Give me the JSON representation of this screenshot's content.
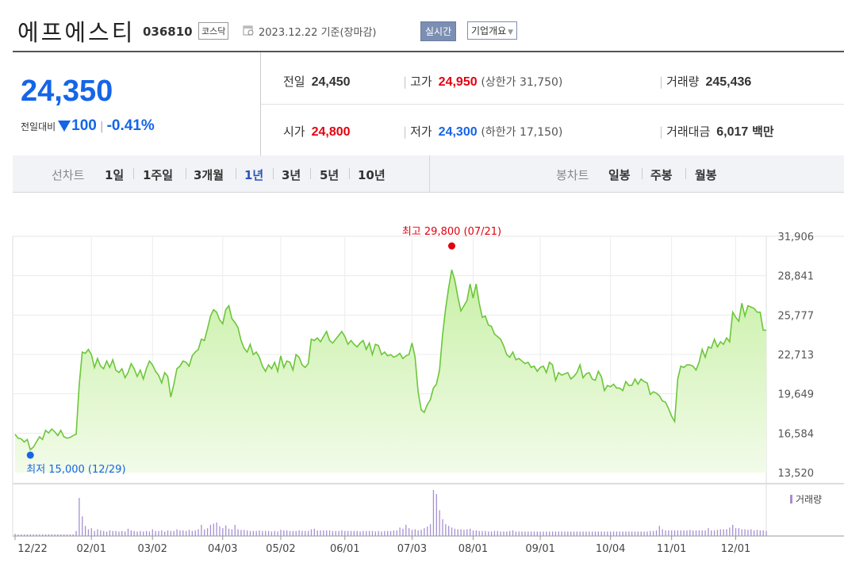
{
  "header": {
    "company_name": "에프에스티",
    "stock_code": "036810",
    "market": "코스닥",
    "base_date": "2023.12.22 기준(장마감)",
    "realtime_label": "실시간",
    "overview_label": "기업개요"
  },
  "price": {
    "current": "24,350",
    "change_label": "전일대비",
    "change_value": "100",
    "change_pct": "-0.41%"
  },
  "stats": {
    "prev_close_label": "전일",
    "prev_close": "24,450",
    "high_label": "고가",
    "high": "24,950",
    "upper_limit": "(상한가 31,750)",
    "volume_label": "거래량",
    "volume": "245,436",
    "open_label": "시가",
    "open": "24,800",
    "low_label": "저가",
    "low": "24,300",
    "lower_limit": "(하한가 17,150)",
    "amount_label": "거래대금",
    "amount": "6,017",
    "amount_unit": "백만"
  },
  "period_bar": {
    "line_chart_label": "선차트",
    "periods": [
      "1일",
      "1주일",
      "3개월",
      "1년",
      "3년",
      "5년",
      "10년"
    ],
    "active_period": "1년",
    "candle_chart_label": "봉차트",
    "candles": [
      "일봉",
      "주봉",
      "월봉"
    ]
  },
  "colors": {
    "line": "#6cc63a",
    "fill_top": "#c8f0a6",
    "fill_bottom": "#f2fbe9",
    "up": "#e3000f",
    "down": "#1565e8",
    "volume": "#a58fd2"
  },
  "chart_data": {
    "type": "area",
    "y_ticks": [
      "31,906",
      "28,841",
      "25,777",
      "22,713",
      "19,649",
      "16,584",
      "13,520"
    ],
    "ylim": [
      13520,
      31906
    ],
    "x_ticks": [
      "12/22",
      "02/01",
      "03/02",
      "04/03",
      "05/02",
      "06/01",
      "07/03",
      "08/01",
      "09/01",
      "10/04",
      "11/01",
      "12/01"
    ],
    "x_tick_index": [
      0,
      25,
      45,
      68,
      87,
      108,
      130,
      150,
      172,
      195,
      215,
      236
    ],
    "max_label": "최고 29,800 (07/21)",
    "max_index": 143,
    "max_value": 29800,
    "min_label": "최저 15,000 (12/29)",
    "min_index": 5,
    "min_value": 15000,
    "volume_legend": "거래량",
    "close": [
      16500,
      16200,
      16150,
      15900,
      16100,
      15300,
      15500,
      15900,
      16300,
      16100,
      16800,
      16600,
      16900,
      16700,
      16400,
      16800,
      16300,
      16200,
      16250,
      16400,
      16500,
      20300,
      22900,
      22800,
      23100,
      22700,
      21700,
      22400,
      21800,
      21600,
      22200,
      21700,
      22300,
      21500,
      21300,
      21600,
      20900,
      21300,
      22000,
      21600,
      21000,
      21500,
      20800,
      21600,
      22200,
      21900,
      21400,
      21100,
      20500,
      21300,
      21000,
      19400,
      20400,
      21600,
      21800,
      22200,
      22100,
      21800,
      22600,
      22900,
      23100,
      23900,
      23800,
      24700,
      25700,
      26200,
      26000,
      25400,
      25100,
      26200,
      26500,
      25500,
      25200,
      24800,
      23800,
      23200,
      22900,
      23500,
      22700,
      22900,
      22500,
      21800,
      21400,
      21900,
      21600,
      22100,
      21400,
      22600,
      21700,
      22200,
      22100,
      21500,
      22700,
      22500,
      21900,
      21700,
      22000,
      23900,
      23800,
      24000,
      23700,
      24100,
      24500,
      23800,
      23600,
      23900,
      24200,
      24500,
      24100,
      23500,
      23800,
      23500,
      23300,
      23600,
      23800,
      23100,
      23600,
      22700,
      23500,
      23400,
      22700,
      22900,
      22600,
      22700,
      22500,
      22600,
      22800,
      22400,
      22600,
      22700,
      23600,
      22500,
      19800,
      18400,
      18200,
      18800,
      19200,
      20100,
      20400,
      21500,
      24200,
      26300,
      27900,
      29300,
      28500,
      27200,
      26100,
      26500,
      26900,
      28200,
      27100,
      28200,
      26700,
      25600,
      25700,
      25000,
      24900,
      24300,
      24100,
      23900,
      23400,
      22700,
      22500,
      22900,
      22300,
      22400,
      22200,
      22000,
      22100,
      21700,
      21800,
      21400,
      21700,
      21800,
      21300,
      22100,
      21900,
      20700,
      21300,
      21100,
      21200,
      21300,
      20800,
      21000,
      21300,
      21900,
      20900,
      21200,
      21300,
      20800,
      20700,
      21400,
      21000,
      19900,
      20300,
      20200,
      20400,
      20100,
      20100,
      19900,
      20600,
      20300,
      20300,
      20800,
      20400,
      20800,
      20600,
      20500,
      19600,
      19800,
      19700,
      19500,
      19100,
      19000,
      18500,
      17900,
      17500,
      20800,
      21800,
      21700,
      21900,
      21900,
      21800,
      21500,
      22100,
      23100,
      22500,
      23300,
      23200,
      23900,
      23300,
      23700,
      23500,
      24000,
      23700,
      26000,
      25600,
      25300,
      26700,
      25700,
      26500,
      26400,
      26300,
      26000,
      26000,
      24600,
      24600
    ]
  },
  "volume_data": {
    "values": [
      4,
      3,
      3,
      3,
      3,
      3,
      3,
      3,
      3,
      3,
      3,
      3,
      3,
      3,
      3,
      3,
      3,
      3,
      3,
      3,
      9,
      68,
      35,
      18,
      12,
      14,
      9,
      12,
      10,
      9,
      8,
      10,
      9,
      9,
      8,
      9,
      8,
      13,
      10,
      9,
      8,
      9,
      8,
      9,
      8,
      12,
      9,
      9,
      10,
      8,
      10,
      9,
      9,
      12,
      10,
      10,
      9,
      11,
      9,
      10,
      12,
      20,
      12,
      14,
      20,
      22,
      24,
      17,
      14,
      19,
      13,
      12,
      20,
      12,
      11,
      11,
      10,
      9,
      9,
      9,
      10,
      9,
      9,
      9,
      8,
      9,
      8,
      11,
      10,
      10,
      9,
      9,
      9,
      10,
      9,
      9,
      9,
      12,
      13,
      10,
      10,
      10,
      10,
      10,
      9,
      9,
      9,
      10,
      9,
      9,
      9,
      9,
      9,
      8,
      9,
      9,
      9,
      9,
      8,
      9,
      8,
      9,
      9,
      9,
      10,
      10,
      15,
      13,
      20,
      14,
      11,
      12,
      10,
      11,
      14,
      17,
      21,
      82,
      75,
      46,
      30,
      21,
      18,
      15,
      13,
      12,
      12,
      11,
      12,
      13,
      10,
      10,
      9,
      9,
      9,
      8,
      8,
      9,
      9,
      8,
      8,
      8,
      9,
      10,
      8,
      8,
      8,
      8,
      8,
      8,
      8,
      8,
      8,
      8,
      8,
      8,
      8,
      8,
      8,
      8,
      8,
      8,
      8,
      8,
      8,
      8,
      8,
      8,
      8,
      8,
      8,
      8,
      8,
      8,
      8,
      8,
      8,
      8,
      8,
      8,
      8,
      8,
      8,
      8,
      8,
      8,
      8,
      8,
      9,
      9,
      10,
      18,
      12,
      10,
      10,
      10,
      10,
      10,
      10,
      10,
      10,
      11,
      10,
      10,
      10,
      10,
      10,
      14,
      10,
      10,
      11,
      12,
      12,
      12,
      15,
      20,
      14,
      14,
      12,
      12,
      11,
      12,
      10,
      11,
      10,
      10,
      9
    ]
  }
}
